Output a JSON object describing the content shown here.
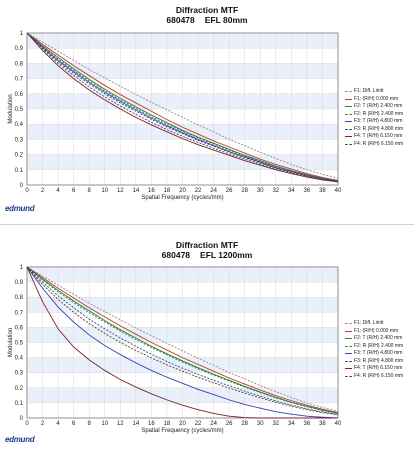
{
  "logo": "edmund",
  "colors": {
    "grid": "#d9d9d9",
    "band": "#eaf0fa",
    "axis": "#555555"
  },
  "chart_data": [
    {
      "type": "line",
      "title": "Diffraction MTF",
      "subtitle_id": "680478",
      "subtitle_efl": "EFL 80mm",
      "xlabel": "Spatial Frequency (cycles/mm)",
      "ylabel": "Modulation",
      "xlim": [
        0,
        40
      ],
      "ylim": [
        0,
        1
      ],
      "x_ticks": [
        0,
        2,
        4,
        6,
        8,
        10,
        12,
        14,
        16,
        18,
        20,
        22,
        24,
        26,
        28,
        30,
        32,
        34,
        36,
        38,
        40
      ],
      "y_ticks": [
        0,
        0.1,
        0.2,
        0.3,
        0.4,
        0.5,
        0.6,
        0.7,
        0.8,
        0.9,
        1
      ],
      "grid": true,
      "legend_position": "right",
      "x": [
        0,
        2,
        4,
        6,
        8,
        10,
        12,
        14,
        16,
        18,
        20,
        22,
        24,
        26,
        28,
        30,
        32,
        34,
        36,
        38,
        40
      ],
      "series": [
        {
          "name": "F1: Diff. Limit",
          "color": "#8c8c8c",
          "dash": "2,1.5",
          "values": [
            1.0,
            0.94,
            0.88,
            0.82,
            0.76,
            0.705,
            0.65,
            0.595,
            0.545,
            0.495,
            0.445,
            0.395,
            0.35,
            0.3,
            0.26,
            0.215,
            0.175,
            0.135,
            0.1,
            0.07,
            0.045
          ]
        },
        {
          "name": "F1: (R/H) 0.000 mm",
          "color": "#c0392b",
          "dash": "",
          "values": [
            1.0,
            0.925,
            0.855,
            0.785,
            0.72,
            0.655,
            0.595,
            0.54,
            0.485,
            0.43,
            0.38,
            0.335,
            0.29,
            0.25,
            0.21,
            0.17,
            0.135,
            0.105,
            0.075,
            0.05,
            0.03
          ]
        },
        {
          "name": "F2: T (R/H) 2.400 mm",
          "color": "#2e7d32",
          "dash": "",
          "values": [
            1.0,
            0.915,
            0.84,
            0.765,
            0.695,
            0.63,
            0.57,
            0.515,
            0.46,
            0.41,
            0.36,
            0.315,
            0.275,
            0.235,
            0.195,
            0.16,
            0.125,
            0.095,
            0.068,
            0.045,
            0.028
          ]
        },
        {
          "name": "F2: R (R/H) 2.400 mm",
          "color": "#2e7d32",
          "dash": "2,1.5",
          "values": [
            1.0,
            0.91,
            0.83,
            0.755,
            0.685,
            0.62,
            0.56,
            0.505,
            0.45,
            0.4,
            0.355,
            0.31,
            0.27,
            0.23,
            0.19,
            0.155,
            0.12,
            0.092,
            0.065,
            0.043,
            0.026
          ]
        },
        {
          "name": "F3: T (R/H) 4.800 mm",
          "color": "#4a3fb5",
          "dash": "",
          "values": [
            1.0,
            0.905,
            0.82,
            0.745,
            0.675,
            0.61,
            0.55,
            0.495,
            0.44,
            0.39,
            0.345,
            0.3,
            0.26,
            0.22,
            0.185,
            0.15,
            0.115,
            0.088,
            0.062,
            0.04,
            0.024
          ]
        },
        {
          "name": "F3: R (R/H) 4.800 mm",
          "color": "#1f4e9c",
          "dash": "2,1.5",
          "values": [
            1.0,
            0.9,
            0.812,
            0.735,
            0.665,
            0.6,
            0.54,
            0.485,
            0.432,
            0.383,
            0.338,
            0.294,
            0.255,
            0.216,
            0.18,
            0.146,
            0.112,
            0.085,
            0.06,
            0.039,
            0.023
          ]
        },
        {
          "name": "F4: T (R/H) 6.150 mm",
          "color": "#7b1f2e",
          "dash": "",
          "values": [
            1.0,
            0.885,
            0.785,
            0.7,
            0.625,
            0.56,
            0.5,
            0.445,
            0.395,
            0.35,
            0.305,
            0.265,
            0.23,
            0.195,
            0.16,
            0.13,
            0.1,
            0.075,
            0.052,
            0.033,
            0.02
          ]
        },
        {
          "name": "F4: R (R/H) 6.150 mm",
          "color": "#5c3b2a",
          "dash": "2,1.5",
          "values": [
            1.0,
            0.895,
            0.8,
            0.72,
            0.645,
            0.58,
            0.52,
            0.465,
            0.412,
            0.365,
            0.32,
            0.28,
            0.242,
            0.205,
            0.17,
            0.138,
            0.107,
            0.08,
            0.056,
            0.036,
            0.022
          ]
        }
      ]
    },
    {
      "type": "line",
      "title": "Diffraction MTF",
      "subtitle_id": "680478",
      "subtitle_efl": "EFL 1200mm",
      "xlabel": "Spatial Frequency (cycles/mm)",
      "ylabel": "Modulation",
      "xlim": [
        0,
        40
      ],
      "ylim": [
        0,
        1
      ],
      "x_ticks": [
        0,
        2,
        4,
        6,
        8,
        10,
        12,
        14,
        16,
        18,
        20,
        22,
        24,
        26,
        28,
        30,
        32,
        34,
        36,
        38,
        40
      ],
      "y_ticks": [
        0,
        0.1,
        0.2,
        0.3,
        0.4,
        0.5,
        0.6,
        0.7,
        0.8,
        0.9,
        1
      ],
      "grid": true,
      "legend_position": "right",
      "x": [
        0,
        2,
        4,
        6,
        8,
        10,
        12,
        14,
        16,
        18,
        20,
        22,
        24,
        26,
        28,
        30,
        32,
        34,
        36,
        38,
        40
      ],
      "series": [
        {
          "name": "F1: Diff. Limit",
          "color": "#8c8c8c",
          "dash": "2,1.5",
          "values": [
            1.0,
            0.94,
            0.88,
            0.82,
            0.76,
            0.705,
            0.65,
            0.595,
            0.545,
            0.495,
            0.445,
            0.395,
            0.35,
            0.3,
            0.26,
            0.215,
            0.175,
            0.135,
            0.1,
            0.07,
            0.045
          ]
        },
        {
          "name": "F1: (R/H) 0.000 mm",
          "color": "#c0392b",
          "dash": "",
          "values": [
            1.0,
            0.93,
            0.86,
            0.795,
            0.73,
            0.67,
            0.61,
            0.555,
            0.5,
            0.45,
            0.4,
            0.355,
            0.31,
            0.265,
            0.225,
            0.185,
            0.148,
            0.115,
            0.085,
            0.058,
            0.036
          ]
        },
        {
          "name": "F2: T (R/H) 2.400 mm",
          "color": "#2e7d32",
          "dash": "",
          "values": [
            1.0,
            0.92,
            0.845,
            0.775,
            0.71,
            0.645,
            0.585,
            0.53,
            0.475,
            0.425,
            0.378,
            0.333,
            0.29,
            0.25,
            0.21,
            0.172,
            0.137,
            0.105,
            0.077,
            0.052,
            0.032
          ]
        },
        {
          "name": "F2: R (R/H) 2.400 mm",
          "color": "#2e7d32",
          "dash": "2,1.5",
          "values": [
            1.0,
            0.915,
            0.835,
            0.765,
            0.698,
            0.635,
            0.575,
            0.52,
            0.467,
            0.418,
            0.37,
            0.326,
            0.284,
            0.244,
            0.205,
            0.168,
            0.133,
            0.102,
            0.074,
            0.05,
            0.031
          ]
        },
        {
          "name": "F3: T (R/H) 4.800 mm",
          "color": "#3b3bb5",
          "dash": "",
          "values": [
            1.0,
            0.86,
            0.735,
            0.635,
            0.55,
            0.48,
            0.42,
            0.365,
            0.315,
            0.27,
            0.23,
            0.19,
            0.155,
            0.12,
            0.09,
            0.065,
            0.042,
            0.025,
            0.012,
            0.005,
            0.0
          ]
        },
        {
          "name": "F3: R (R/H) 4.800 mm",
          "color": "#1f4e9c",
          "dash": "2,1.5",
          "values": [
            1.0,
            0.9,
            0.81,
            0.73,
            0.655,
            0.59,
            0.53,
            0.475,
            0.422,
            0.374,
            0.33,
            0.288,
            0.25,
            0.213,
            0.178,
            0.145,
            0.113,
            0.086,
            0.061,
            0.04,
            0.024
          ]
        },
        {
          "name": "F4: T (R/H) 6.150 mm",
          "color": "#7b1f2e",
          "dash": "",
          "values": [
            1.0,
            0.77,
            0.59,
            0.47,
            0.385,
            0.315,
            0.255,
            0.205,
            0.16,
            0.12,
            0.085,
            0.055,
            0.03,
            0.012,
            0.003,
            0.0,
            0.0,
            0.0,
            0.0,
            0.0,
            0.0
          ]
        },
        {
          "name": "F4: R (R/H) 6.150 mm",
          "color": "#5c3b2a",
          "dash": "2,1.5",
          "values": [
            1.0,
            0.885,
            0.785,
            0.7,
            0.625,
            0.56,
            0.5,
            0.447,
            0.398,
            0.352,
            0.31,
            0.27,
            0.233,
            0.198,
            0.165,
            0.134,
            0.104,
            0.078,
            0.055,
            0.036,
            0.021
          ]
        }
      ]
    }
  ]
}
